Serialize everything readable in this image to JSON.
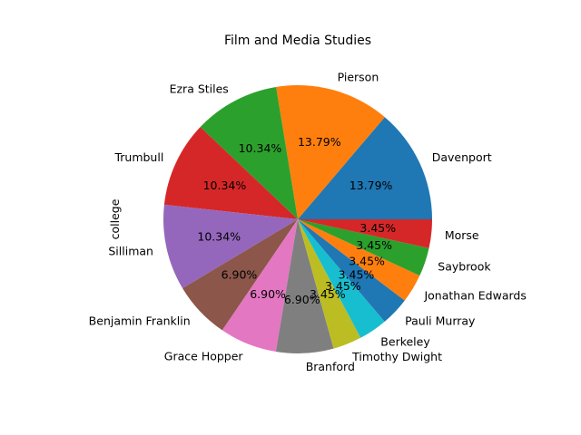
{
  "chart_data": {
    "type": "pie",
    "title": "Film and Media Studies",
    "ylabel": "college",
    "slices": [
      {
        "label": "Davenport",
        "value": 13.79,
        "pct_label": "13.79%",
        "color": "#1f77b4"
      },
      {
        "label": "Pierson",
        "value": 13.79,
        "pct_label": "13.79%",
        "color": "#ff7f0e"
      },
      {
        "label": "Ezra Stiles",
        "value": 10.34,
        "pct_label": "10.34%",
        "color": "#2ca02c"
      },
      {
        "label": "Trumbull",
        "value": 10.34,
        "pct_label": "10.34%",
        "color": "#d62728"
      },
      {
        "label": "Silliman",
        "value": 10.34,
        "pct_label": "10.34%",
        "color": "#9467bd"
      },
      {
        "label": "Benjamin Franklin",
        "value": 6.9,
        "pct_label": "6.90%",
        "color": "#8c564b"
      },
      {
        "label": "Grace Hopper",
        "value": 6.9,
        "pct_label": "6.90%",
        "color": "#e377c2"
      },
      {
        "label": "Branford",
        "value": 6.9,
        "pct_label": "6.90%",
        "color": "#7f7f7f"
      },
      {
        "label": "Timothy Dwight",
        "value": 3.45,
        "pct_label": "3.45%",
        "color": "#bcbd22"
      },
      {
        "label": "Berkeley",
        "value": 3.45,
        "pct_label": "3.45%",
        "color": "#17becf"
      },
      {
        "label": "Pauli Murray",
        "value": 3.45,
        "pct_label": "3.45%",
        "color": "#1f77b4"
      },
      {
        "label": "Jonathan Edwards",
        "value": 3.45,
        "pct_label": "3.45%",
        "color": "#ff7f0e"
      },
      {
        "label": "Saybrook",
        "value": 3.45,
        "pct_label": "3.45%",
        "color": "#2ca02c"
      },
      {
        "label": "Morse",
        "value": 3.45,
        "pct_label": "3.45%",
        "color": "#d62728"
      }
    ]
  }
}
